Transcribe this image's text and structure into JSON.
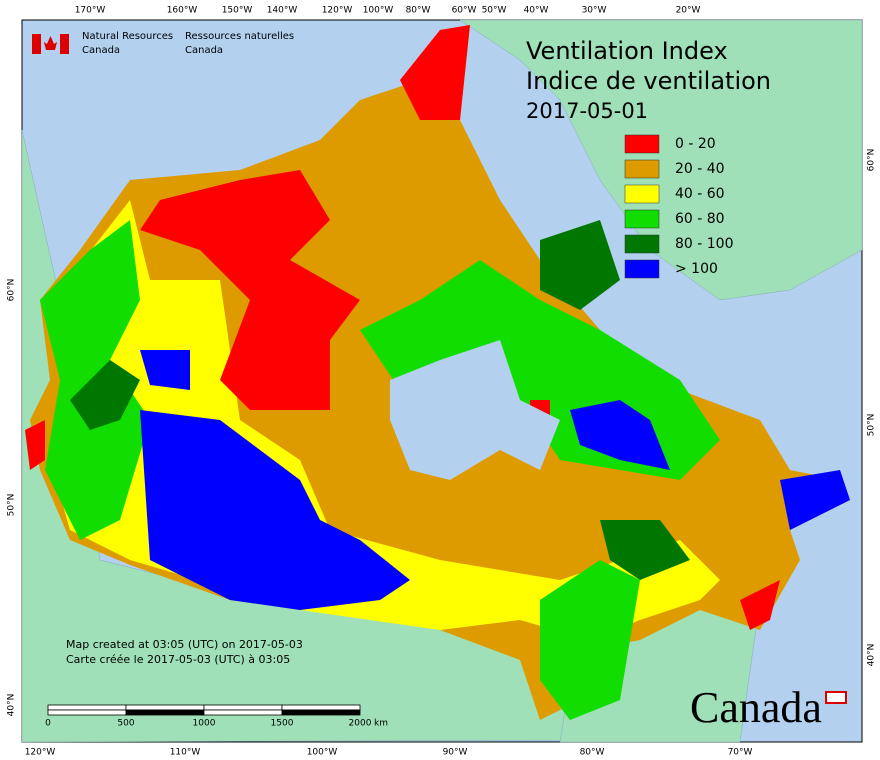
{
  "title": {
    "lines": [
      "Ventilation Index",
      "Indice de ventilation",
      "2017-05-01"
    ]
  },
  "legend": [
    {
      "label": "0 - 20",
      "color": "#ff0000"
    },
    {
      "label": "20 - 40",
      "color": "#dd9b00"
    },
    {
      "label": "40 - 60",
      "color": "#ffff00"
    },
    {
      "label": "60 - 80",
      "color": "#11dd00"
    },
    {
      "label": "80 - 100",
      "color": "#007700"
    },
    {
      "label": "> 100",
      "color": "#0000ff"
    }
  ],
  "agency": {
    "english": [
      "Natural Resources",
      "Canada"
    ],
    "french": [
      "Ressources naturelles",
      "Canada"
    ]
  },
  "credits": [
    "Map created at 03:05 (UTC) on 2017-05-03",
    "Carte créée le 2017-05-03 (UTC) à 03:05"
  ],
  "scale_bar": {
    "labels": [
      "0",
      "500",
      "1000",
      "1500",
      "2000"
    ],
    "unit": "km"
  },
  "graticule": {
    "top": [
      "170°W",
      "160°W",
      "150°W",
      "140°W",
      "120°W",
      "100°W",
      "80°W",
      "60°W",
      "50°W",
      "40°W",
      "30°W",
      "20°W"
    ],
    "bottom": [
      "120°W",
      "110°W",
      "100°W",
      "90°W",
      "80°W",
      "70°W"
    ],
    "left": [
      "60°N",
      "50°N",
      "40°N"
    ],
    "right": [
      "60°N",
      "50°N",
      "40°N"
    ]
  },
  "wordmark": "Canada"
}
